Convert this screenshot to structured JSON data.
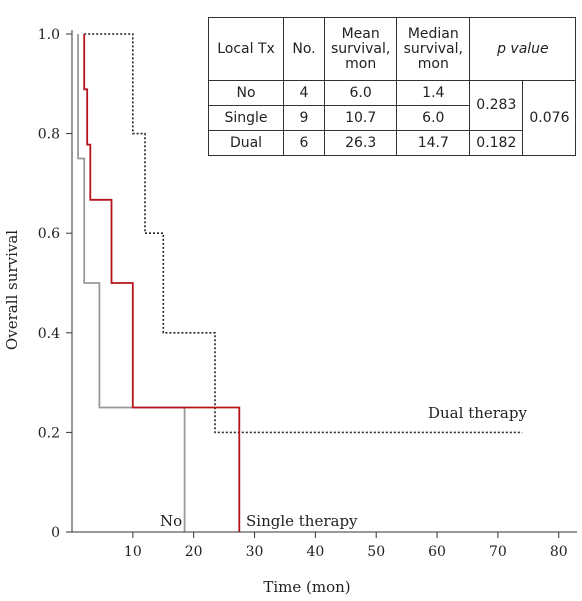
{
  "chart_data": {
    "type": "line",
    "step": true,
    "xlabel": "Time (mon)",
    "ylabel": "Overall survival",
    "xlim": [
      0,
      83
    ],
    "ylim": [
      0,
      1.0
    ],
    "x_ticks": [
      10,
      20,
      30,
      40,
      50,
      60,
      70,
      80
    ],
    "y_ticks": [
      0,
      0.2,
      0.4,
      0.6,
      0.8,
      1.0
    ],
    "y_tick_labels": [
      "0",
      "0.2",
      "0.4",
      "0.6",
      "0.8",
      "1.0"
    ],
    "grid": false,
    "series": [
      {
        "name": "No",
        "color": "#999999",
        "style": "solid",
        "points": [
          [
            1,
            1.0
          ],
          [
            1,
            0.75
          ],
          [
            2,
            0.75
          ],
          [
            2,
            0.5
          ],
          [
            4.5,
            0.5
          ],
          [
            4.5,
            0.25
          ],
          [
            18.5,
            0.25
          ],
          [
            18.5,
            0
          ]
        ]
      },
      {
        "name": "Single therapy",
        "color": "#b5121b",
        "style": "solid",
        "points": [
          [
            2,
            1.0
          ],
          [
            2,
            0.889
          ],
          [
            2.5,
            0.889
          ],
          [
            2.5,
            0.778
          ],
          [
            3,
            0.778
          ],
          [
            3,
            0.667
          ],
          [
            6.5,
            0.667
          ],
          [
            6.5,
            0.5
          ],
          [
            10,
            0.5
          ],
          [
            10,
            0.25
          ],
          [
            27.5,
            0.25
          ],
          [
            27.5,
            0
          ]
        ]
      },
      {
        "name": "Dual therapy",
        "color": "#222222",
        "style": "dotted",
        "points": [
          [
            2,
            1.0
          ],
          [
            10,
            1.0
          ],
          [
            10,
            0.8
          ],
          [
            12,
            0.8
          ],
          [
            12,
            0.6
          ],
          [
            15,
            0.6
          ],
          [
            15,
            0.4
          ],
          [
            23.5,
            0.4
          ],
          [
            23.5,
            0.2
          ],
          [
            74,
            0.2
          ]
        ]
      }
    ],
    "table": {
      "headers": [
        "Local Tx",
        "No.",
        "Mean survival, mon",
        "Median survival, mon",
        "p value"
      ],
      "rows": [
        [
          "No",
          "4",
          "6.0",
          "1.4"
        ],
        [
          "Single",
          "9",
          "10.7",
          "6.0"
        ],
        [
          "Dual",
          "6",
          "26.3",
          "14.7"
        ]
      ],
      "p_values": {
        "no_vs_single": "0.283",
        "single_vs_dual": "0.182",
        "overall": "0.076"
      }
    }
  }
}
